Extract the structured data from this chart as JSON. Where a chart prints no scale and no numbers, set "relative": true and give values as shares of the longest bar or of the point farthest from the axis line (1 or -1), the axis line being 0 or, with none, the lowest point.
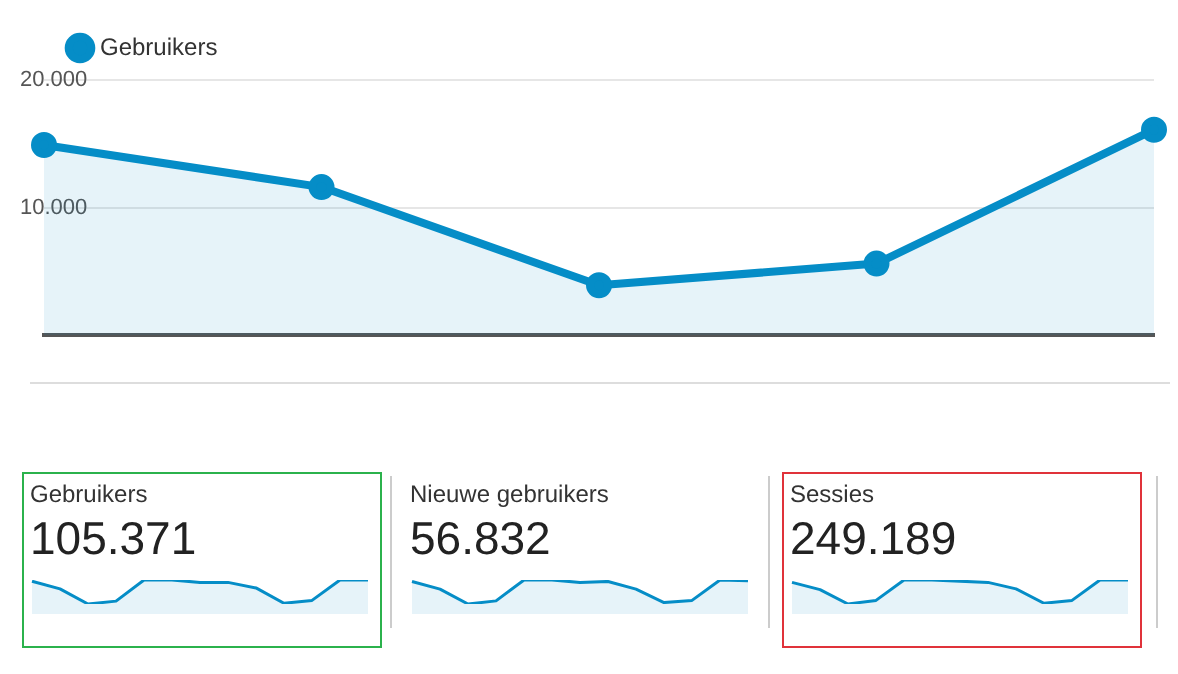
{
  "chart_data": [
    {
      "type": "area",
      "categories": [
        null,
        null,
        null,
        null,
        null
      ],
      "series": [
        {
          "name": "Gebruikers",
          "color": "#058dc7",
          "values": [
            14900,
            11600,
            3900,
            5600,
            16100
          ]
        }
      ],
      "ylim": [
        0,
        20000
      ],
      "yticks": [
        {
          "value": 10000,
          "label": "10.000"
        },
        {
          "value": 20000,
          "label": "20.000"
        }
      ],
      "grid": "y",
      "legend": "top left",
      "marker": "circle",
      "tick_labels": "y"
    },
    {
      "type": "area",
      "title": "Gebruikers",
      "subtitle": "105.371",
      "categories": [
        null,
        null,
        null,
        null,
        null,
        null,
        null,
        null,
        null,
        null,
        null,
        null,
        null
      ],
      "series": [
        {
          "color": "#058dc7",
          "values": [
            0.95,
            0.63,
            0,
            0.12,
            1,
            1,
            0.9,
            0.9,
            0.67,
            0.03,
            0.15,
            1,
            1
          ]
        }
      ],
      "relative": true,
      "tick_labels": false
    },
    {
      "type": "area",
      "title": "Nieuwe gebruikers",
      "subtitle": "56.832",
      "categories": [
        null,
        null,
        null,
        null,
        null,
        null,
        null,
        null,
        null,
        null,
        null,
        null,
        null
      ],
      "series": [
        {
          "color": "#058dc7",
          "values": [
            0.94,
            0.62,
            0,
            0.13,
            1,
            1,
            0.9,
            0.94,
            0.62,
            0.06,
            0.15,
            1,
            0.97
          ]
        }
      ],
      "relative": true,
      "tick_labels": false
    },
    {
      "type": "area",
      "title": "Sessies",
      "subtitle": "249.189",
      "categories": [
        null,
        null,
        null,
        null,
        null,
        null,
        null,
        null,
        null,
        null,
        null,
        null,
        null
      ],
      "series": [
        {
          "color": "#058dc7",
          "values": [
            0.9,
            0.6,
            0,
            0.15,
            1,
            1,
            0.95,
            0.9,
            0.63,
            0.03,
            0.15,
            1,
            1
          ]
        }
      ],
      "relative": true,
      "tick_labels": false
    }
  ]
}
